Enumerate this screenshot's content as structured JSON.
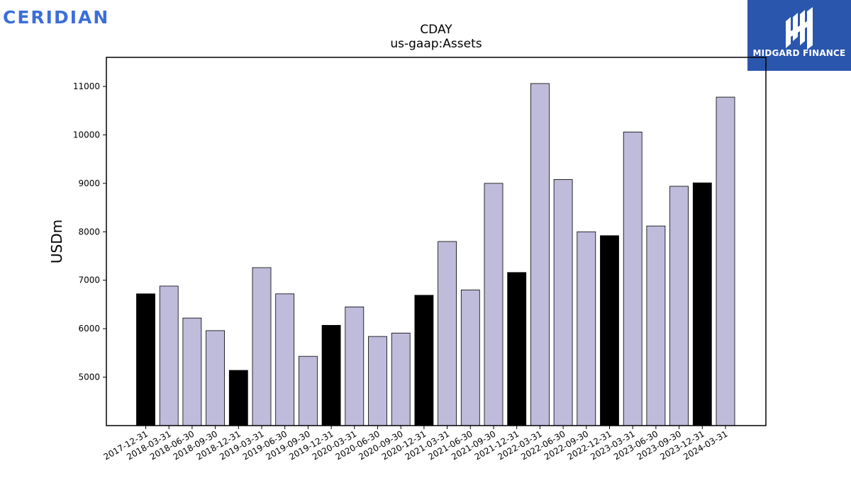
{
  "brand": {
    "wordmark": "CERIDIAN",
    "logo_text": "MIDGARD FINANCE",
    "logo_icon": "midgard-logo-icon"
  },
  "colors": {
    "wordmark": "#3b6fd8",
    "badge": "#2a56ad",
    "bar_quarter": "#bebbdb",
    "bar_year_end": "#000000"
  },
  "chart_data": {
    "type": "bar",
    "title": "CDAY",
    "subtitle": "us-gaap:Assets",
    "xlabel": "",
    "ylabel": "USDm",
    "ylim": [
      4000,
      11600
    ],
    "yticks": [
      5000,
      6000,
      7000,
      8000,
      9000,
      10000,
      11000
    ],
    "grid": false,
    "categories": [
      "2017-12-31",
      "2018-03-31",
      "2018-06-30",
      "2018-09-30",
      "2018-12-31",
      "2019-03-31",
      "2019-06-30",
      "2019-09-30",
      "2019-12-31",
      "2020-03-31",
      "2020-06-30",
      "2020-09-30",
      "2020-12-31",
      "2021-03-31",
      "2021-06-30",
      "2021-09-30",
      "2021-12-31",
      "2022-03-31",
      "2022-06-30",
      "2022-09-30",
      "2022-12-31",
      "2023-03-31",
      "2023-06-30",
      "2023-09-30",
      "2023-12-31",
      "2024-03-31"
    ],
    "values": [
      6720,
      6880,
      6220,
      5960,
      5140,
      7260,
      6720,
      5430,
      6070,
      6450,
      5840,
      5910,
      6690,
      7800,
      6800,
      9000,
      7160,
      11060,
      9080,
      8000,
      7920,
      10060,
      8120,
      8940,
      9010,
      10780
    ],
    "year_end": [
      true,
      false,
      false,
      false,
      true,
      false,
      false,
      false,
      true,
      false,
      false,
      false,
      true,
      false,
      false,
      false,
      true,
      false,
      false,
      false,
      true,
      false,
      false,
      false,
      true,
      false
    ]
  }
}
